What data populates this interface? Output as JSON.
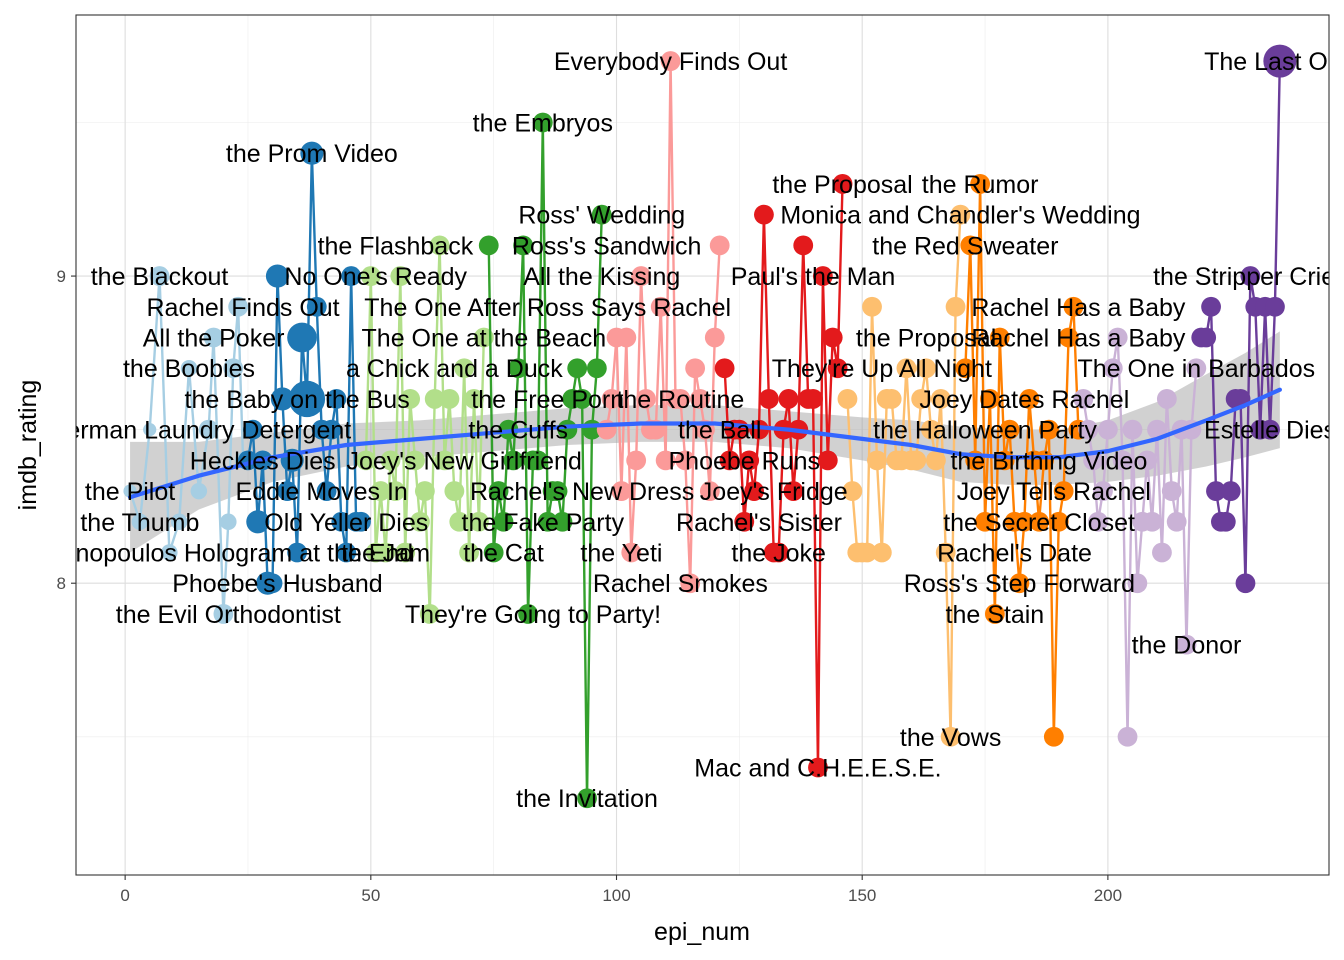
{
  "chart_data": {
    "type": "scatter",
    "xlabel": "epi_num",
    "ylabel": "imdb_rating",
    "xlim": [
      -10,
      245
    ],
    "ylim": [
      7.05,
      9.85
    ],
    "x_ticks": [
      0,
      50,
      100,
      150,
      200
    ],
    "y_ticks": [
      8,
      9
    ],
    "grid": true,
    "legend": "none",
    "smooth": {
      "method": "loess",
      "color": "#3366FF",
      "x": [
        1,
        15,
        30,
        45,
        60,
        75,
        90,
        105,
        120,
        135,
        150,
        160,
        170,
        180,
        190,
        200,
        210,
        220,
        228,
        235
      ],
      "y": [
        8.28,
        8.35,
        8.41,
        8.45,
        8.47,
        8.49,
        8.51,
        8.52,
        8.52,
        8.5,
        8.47,
        8.45,
        8.42,
        8.41,
        8.41,
        8.43,
        8.47,
        8.53,
        8.58,
        8.63
      ],
      "ymin": [
        8.1,
        8.24,
        8.33,
        8.38,
        8.41,
        8.43,
        8.45,
        8.46,
        8.46,
        8.44,
        8.4,
        8.37,
        8.33,
        8.32,
        8.32,
        8.33,
        8.35,
        8.38,
        8.41,
        8.44
      ],
      "ymax": [
        8.46,
        8.46,
        8.49,
        8.52,
        8.53,
        8.55,
        8.57,
        8.58,
        8.58,
        8.56,
        8.54,
        8.53,
        8.51,
        8.5,
        8.5,
        8.53,
        8.59,
        8.68,
        8.75,
        8.82
      ]
    },
    "series": [
      {
        "season": 1,
        "color": "#a6cee3",
        "x": [
          1,
          3,
          5,
          7,
          9,
          11,
          13,
          15,
          17,
          18,
          20,
          21,
          22,
          23,
          24
        ],
        "y": [
          8.3,
          8.2,
          8.5,
          9.0,
          8.1,
          8.2,
          8.7,
          8.3,
          8.5,
          8.8,
          7.9,
          8.2,
          8.7,
          8.9,
          8.4
        ],
        "votes": [
          4,
          5,
          4,
          6,
          5,
          5,
          5,
          5,
          6,
          6,
          6,
          5,
          6,
          6,
          5
        ]
      },
      {
        "season": 2,
        "color": "#1f78b4",
        "x": [
          25,
          26,
          27,
          28,
          29,
          30,
          31,
          32,
          33,
          34,
          35,
          36,
          37,
          38,
          39,
          40,
          41,
          42,
          43,
          44,
          45,
          46,
          47,
          48
        ],
        "y": [
          8.4,
          8.5,
          8.2,
          8.4,
          8.0,
          8.0,
          9.0,
          8.6,
          8.3,
          8.4,
          8.1,
          8.8,
          8.6,
          9.4,
          8.9,
          8.5,
          8.3,
          8.5,
          8.6,
          8.2,
          8.1,
          9.0,
          8.2,
          8.2
        ],
        "votes": [
          6,
          6,
          7,
          6,
          7,
          6,
          7,
          7,
          6,
          7,
          6,
          9,
          11,
          7,
          6,
          6,
          6,
          6,
          6,
          6,
          6,
          6,
          6,
          6
        ]
      },
      {
        "season": 3,
        "color": "#b2df8a",
        "x": [
          49,
          50,
          51,
          52,
          53,
          54,
          55,
          56,
          57,
          58,
          59,
          60,
          61,
          62,
          63,
          64,
          65,
          66,
          67,
          68,
          69,
          70,
          71,
          72,
          73
        ],
        "y": [
          8.4,
          9.0,
          8.1,
          8.3,
          8.1,
          8.4,
          8.3,
          9.0,
          8.1,
          8.6,
          8.4,
          8.2,
          8.3,
          7.9,
          8.6,
          9.1,
          8.4,
          8.6,
          8.3,
          8.2,
          8.7,
          8.1,
          8.6,
          8.2,
          8.8
        ],
        "votes": [
          6,
          6,
          6,
          6,
          6,
          6,
          6,
          6,
          6,
          6,
          6,
          6,
          6,
          6,
          6,
          6,
          6,
          6,
          6,
          6,
          6,
          6,
          6,
          6,
          6
        ]
      },
      {
        "season": 4,
        "color": "#33a02c",
        "x": [
          74,
          75,
          76,
          77,
          78,
          79,
          80,
          81,
          82,
          83,
          84,
          85,
          86,
          87,
          88,
          89,
          90,
          91,
          92,
          93,
          94,
          95,
          96,
          97
        ],
        "y": [
          9.1,
          8.1,
          8.3,
          8.2,
          8.5,
          8.4,
          8.7,
          9.1,
          7.9,
          8.4,
          8.4,
          9.5,
          8.2,
          8.3,
          8.3,
          8.2,
          8.5,
          8.6,
          8.7,
          8.6,
          7.3,
          8.5,
          8.7,
          9.2
        ],
        "votes": [
          6,
          6,
          6,
          6,
          6,
          6,
          6,
          6,
          6,
          6,
          6,
          6,
          6,
          6,
          6,
          6,
          6,
          6,
          6,
          6,
          6,
          6,
          6,
          6
        ]
      },
      {
        "season": 5,
        "color": "#fb9a99",
        "x": [
          98,
          99,
          100,
          101,
          102,
          103,
          104,
          105,
          106,
          107,
          108,
          109,
          110,
          111,
          112,
          113,
          114,
          115,
          116,
          117,
          118,
          119,
          120,
          121
        ],
        "y": [
          8.5,
          8.6,
          8.8,
          8.3,
          8.8,
          8.1,
          8.4,
          9.0,
          8.6,
          8.5,
          8.5,
          8.9,
          8.4,
          9.7,
          8.6,
          8.6,
          8.4,
          8.0,
          8.7,
          8.6,
          8.5,
          8.3,
          8.8,
          9.1
        ],
        "votes": [
          6,
          6,
          6,
          6,
          6,
          6,
          6,
          6,
          6,
          6,
          6,
          6,
          6,
          6,
          6,
          6,
          6,
          6,
          6,
          6,
          6,
          6,
          6,
          6
        ]
      },
      {
        "season": 6,
        "color": "#e31a1c",
        "x": [
          122,
          123,
          124,
          125,
          126,
          127,
          128,
          129,
          130,
          131,
          132,
          133,
          134,
          135,
          136,
          137,
          138,
          139,
          140,
          141,
          142,
          143,
          144,
          145,
          146
        ],
        "y": [
          8.7,
          8.4,
          8.5,
          8.5,
          8.2,
          8.4,
          8.3,
          8.5,
          9.2,
          8.6,
          8.1,
          8.1,
          8.5,
          8.6,
          8.3,
          8.5,
          9.1,
          8.6,
          8.6,
          7.4,
          9.0,
          8.4,
          8.8,
          8.7,
          9.3
        ],
        "votes": [
          6,
          6,
          6,
          6,
          6,
          6,
          6,
          6,
          6,
          6,
          6,
          6,
          6,
          6,
          6,
          6,
          6,
          6,
          6,
          6,
          6,
          6,
          6,
          6,
          6
        ]
      },
      {
        "season": 7,
        "color": "#fdbf6f",
        "x": [
          147,
          148,
          149,
          150,
          151,
          152,
          153,
          154,
          155,
          156,
          157,
          158,
          159,
          160,
          161,
          162,
          163,
          164,
          165,
          166,
          167,
          168,
          169,
          170
        ],
        "y": [
          8.6,
          8.3,
          8.1,
          8.1,
          8.1,
          8.9,
          8.4,
          8.1,
          8.6,
          8.6,
          8.4,
          8.4,
          8.7,
          8.4,
          8.4,
          8.6,
          8.7,
          8.5,
          8.4,
          8.6,
          8.1,
          7.5,
          8.9,
          9.2
        ],
        "votes": [
          6,
          6,
          6,
          6,
          6,
          6,
          6,
          6,
          6,
          6,
          6,
          6,
          6,
          6,
          6,
          6,
          6,
          6,
          6,
          6,
          6,
          6,
          6,
          6
        ]
      },
      {
        "season": 8,
        "color": "#ff7f00",
        "x": [
          171,
          172,
          173,
          174,
          175,
          176,
          177,
          178,
          179,
          180,
          181,
          182,
          183,
          184,
          185,
          186,
          187,
          188,
          189,
          190,
          191,
          192,
          193,
          194
        ],
        "y": [
          8.7,
          9.1,
          8.4,
          9.3,
          8.2,
          8.6,
          7.9,
          8.8,
          8.4,
          8.5,
          8.2,
          8.0,
          8.2,
          8.6,
          8.4,
          8.2,
          8.4,
          8.5,
          7.5,
          8.2,
          8.3,
          8.8,
          8.9,
          8.5
        ],
        "votes": [
          6,
          6,
          6,
          6,
          6,
          6,
          6,
          6,
          6,
          6,
          6,
          6,
          6,
          6,
          6,
          6,
          6,
          6,
          6,
          6,
          6,
          6,
          6,
          6
        ]
      },
      {
        "season": 9,
        "color": "#cab2d6",
        "x": [
          195,
          196,
          197,
          198,
          199,
          200,
          201,
          202,
          203,
          204,
          205,
          206,
          207,
          208,
          209,
          210,
          211,
          212,
          213,
          214,
          215,
          216,
          217,
          218
        ],
        "y": [
          8.6,
          8.5,
          8.4,
          8.2,
          8.3,
          8.5,
          8.7,
          8.8,
          8.4,
          7.5,
          8.5,
          8.0,
          8.2,
          8.4,
          8.2,
          8.5,
          8.1,
          8.6,
          8.3,
          8.2,
          8.5,
          7.8,
          8.5,
          8.7
        ],
        "votes": [
          6,
          6,
          6,
          6,
          6,
          6,
          6,
          6,
          6,
          6,
          6,
          6,
          6,
          6,
          6,
          6,
          6,
          6,
          6,
          6,
          6,
          6,
          6,
          6
        ]
      },
      {
        "season": 10,
        "color": "#6a3d9a",
        "x": [
          219,
          220,
          221,
          222,
          223,
          224,
          225,
          226,
          227,
          228,
          229,
          230,
          231,
          232,
          233,
          234,
          235
        ],
        "y": [
          8.8,
          8.8,
          8.9,
          8.3,
          8.2,
          8.2,
          8.3,
          8.6,
          8.6,
          8.0,
          9.0,
          8.9,
          8.5,
          8.9,
          8.5,
          8.9,
          9.7
        ],
        "votes": [
          6,
          6,
          6,
          6,
          6,
          6,
          6,
          6,
          6,
          6,
          6,
          6,
          6,
          6,
          6,
          6,
          10
        ]
      }
    ],
    "labels": [
      {
        "text": "the Pilot",
        "x": 1,
        "y": 8.3
      },
      {
        "text": "the Thumb",
        "x": 3,
        "y": 8.2
      },
      {
        "text": "George Stephanopoulos Hologram at the End",
        "x": 7,
        "y": 8.1
      },
      {
        "text": "the East German Laundry Detergent",
        "x": 5,
        "y": 8.5
      },
      {
        "text": "the Blackout",
        "x": 7,
        "y": 9.0
      },
      {
        "text": "Rachel Finds Out",
        "x": 24,
        "y": 8.9
      },
      {
        "text": "All the Poker",
        "x": 18,
        "y": 8.8
      },
      {
        "text": "the Boobies",
        "x": 13,
        "y": 8.7
      },
      {
        "text": "the Baby on the Bus",
        "x": 35,
        "y": 8.6
      },
      {
        "text": "Heckles Dies",
        "x": 28,
        "y": 8.4
      },
      {
        "text": "Eddie Moves In",
        "x": 40,
        "y": 8.3
      },
      {
        "text": "Old Yeller Dies",
        "x": 45,
        "y": 8.2
      },
      {
        "text": "Phoebe's Husband",
        "x": 31,
        "y": 8.0
      },
      {
        "text": "the Evil Orthodontist",
        "x": 21,
        "y": 7.9
      },
      {
        "text": "the Prom Video",
        "x": 38,
        "y": 9.4
      },
      {
        "text": "No One's Ready",
        "x": 51,
        "y": 9.0
      },
      {
        "text": "the Flashback",
        "x": 55,
        "y": 9.1
      },
      {
        "text": "The One After Ross Says Rachel",
        "x": 86,
        "y": 8.9
      },
      {
        "text": "The One at the Beach",
        "x": 73,
        "y": 8.8
      },
      {
        "text": "a Chick and a Duck",
        "x": 67,
        "y": 8.7
      },
      {
        "text": "Joey's New Girlfriend",
        "x": 69,
        "y": 8.4
      },
      {
        "text": "Rachel's New Dress",
        "x": 93,
        "y": 8.3
      },
      {
        "text": "the Jam",
        "x": 53,
        "y": 8.1
      },
      {
        "text": "They're Going to Party!",
        "x": 83,
        "y": 7.9
      },
      {
        "text": "the Embryos",
        "x": 85,
        "y": 9.5
      },
      {
        "text": "Ross' Wedding",
        "x": 97,
        "y": 9.2
      },
      {
        "text": "Ross's Sandwich",
        "x": 98,
        "y": 9.1
      },
      {
        "text": "All the Kissing",
        "x": 97,
        "y": 9.0
      },
      {
        "text": "the Free Porn",
        "x": 86,
        "y": 8.6
      },
      {
        "text": "the Cuffs",
        "x": 80,
        "y": 8.5
      },
      {
        "text": "the Fake Party",
        "x": 85,
        "y": 8.2
      },
      {
        "text": "the Cat",
        "x": 77,
        "y": 8.1
      },
      {
        "text": "the Invitation",
        "x": 94,
        "y": 7.3
      },
      {
        "text": "Everybody Finds Out",
        "x": 111,
        "y": 9.7
      },
      {
        "text": "Paul's the Man",
        "x": 140,
        "y": 9.0
      },
      {
        "text": "the Routine",
        "x": 113,
        "y": 8.6
      },
      {
        "text": "the Ball",
        "x": 121,
        "y": 8.5
      },
      {
        "text": "Phoebe Runs",
        "x": 126,
        "y": 8.4
      },
      {
        "text": "Joey's Fridge",
        "x": 132,
        "y": 8.3
      },
      {
        "text": "Rachel's Sister",
        "x": 129,
        "y": 8.2
      },
      {
        "text": "the Yeti",
        "x": 101,
        "y": 8.1
      },
      {
        "text": "Rachel Smokes",
        "x": 113,
        "y": 8.0
      },
      {
        "text": "the Proposal",
        "x": 146,
        "y": 9.3
      },
      {
        "text": "Monica and Chandler's Wedding",
        "x": 170,
        "y": 9.2
      },
      {
        "text": "the Proposal",
        "x": 163,
        "y": 8.8
      },
      {
        "text": "They're Up All Night",
        "x": 154,
        "y": 8.7
      },
      {
        "text": "the Joke",
        "x": 133,
        "y": 8.1
      },
      {
        "text": "Mac and C.H.E.E.S.E.",
        "x": 141,
        "y": 7.4
      },
      {
        "text": "the Rumor",
        "x": 174,
        "y": 9.3
      },
      {
        "text": "the Red Sweater",
        "x": 171,
        "y": 9.1
      },
      {
        "text": "Rachel Has a Baby",
        "x": 194,
        "y": 8.9
      },
      {
        "text": "Rachel Has a Baby",
        "x": 194,
        "y": 8.8
      },
      {
        "text": "Joey Dates Rachel",
        "x": 183,
        "y": 8.6
      },
      {
        "text": "the Halloween Party",
        "x": 175,
        "y": 8.5
      },
      {
        "text": "the Birthing Video",
        "x": 188,
        "y": 8.4
      },
      {
        "text": "Joey Tells Rachel",
        "x": 189,
        "y": 8.3
      },
      {
        "text": "the Secret Closet",
        "x": 186,
        "y": 8.2
      },
      {
        "text": "Rachel's Date",
        "x": 181,
        "y": 8.1
      },
      {
        "text": "Ross's Step Forward",
        "x": 182,
        "y": 8.0
      },
      {
        "text": "the Stain",
        "x": 177,
        "y": 7.9
      },
      {
        "text": "the Vows",
        "x": 168,
        "y": 7.5
      },
      {
        "text": "The One in Barbados",
        "x": 218,
        "y": 8.7
      },
      {
        "text": "the Donor",
        "x": 216,
        "y": 7.8
      },
      {
        "text": "the Stripper Cries",
        "x": 229,
        "y": 9.0
      },
      {
        "text": "Estelle Dies",
        "x": 233,
        "y": 8.5
      },
      {
        "text": "The Last One",
        "x": 235,
        "y": 9.7
      }
    ]
  }
}
